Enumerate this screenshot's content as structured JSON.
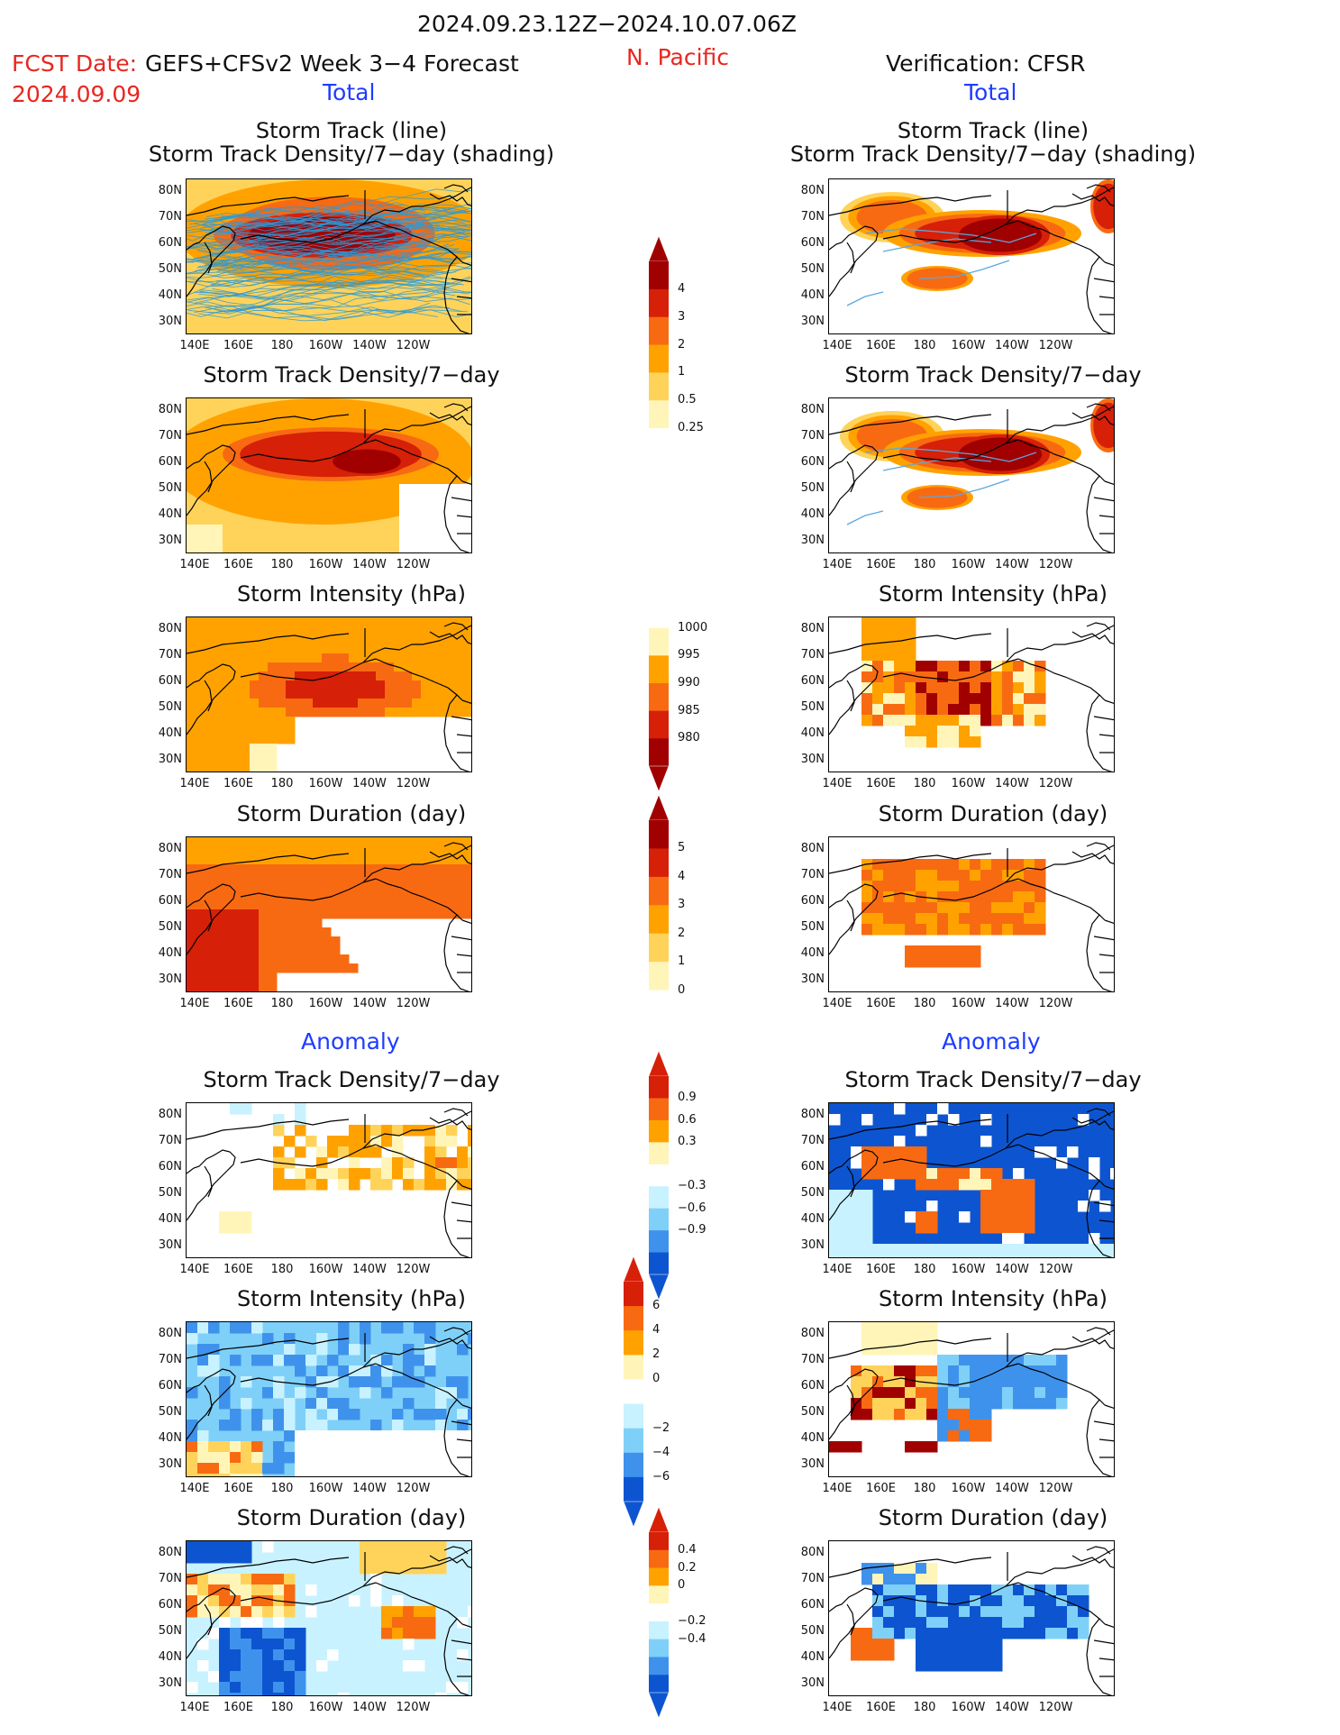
{
  "header": {
    "date_range": "2024.09.23.12Z−2024.10.07.06Z",
    "fcst_label": "FCST Date:",
    "fcst_model": "GEFS+CFSv2 Week 3−4 Forecast",
    "fcst_date": "2024.09.09",
    "region": "N. Pacific",
    "verification": "Verification: CFSR",
    "total_left": "Total",
    "total_right": "Total",
    "anomaly_left": "Anomaly",
    "anomaly_right": "Anomaly"
  },
  "panel_titles": {
    "track_line": "Storm Track (line)",
    "track_density_shading": "Storm Track Density/7−day (shading)",
    "track_density": "Storm Track Density/7−day",
    "intensity": "Storm Intensity (hPa)",
    "duration": "Storm Duration (day)"
  },
  "axes": {
    "lat_labels": [
      "80N",
      "70N",
      "60N",
      "50N",
      "40N",
      "30N"
    ],
    "lon_labels": [
      "140E",
      "160E",
      "180",
      "160W",
      "140W",
      "120W"
    ]
  },
  "colorbars": {
    "density_total": [
      "4",
      "3",
      "2",
      "1",
      "0.5",
      "0.25"
    ],
    "intensity_total": [
      "1000",
      "995",
      "990",
      "985",
      "980"
    ],
    "duration_total": [
      "5",
      "4",
      "3",
      "2",
      "1",
      "0"
    ],
    "density_anom": [
      "0.9",
      "0.6",
      "0.3",
      "−0.3",
      "−0.6",
      "−0.9"
    ],
    "intensity_anom": [
      "6",
      "4",
      "2",
      "0",
      "−2",
      "−4",
      "−6"
    ],
    "duration_anom": [
      "0.4",
      "0.2",
      "0",
      "−0.2",
      "−0.4"
    ]
  },
  "colors": {
    "warm": [
      "#fff5b8",
      "#ffd35a",
      "#ffa200",
      "#f86a12",
      "#d62008",
      "#a00000"
    ],
    "cool": [
      "#c8f2ff",
      "#7fd0f8",
      "#3f92ec",
      "#0d55d0"
    ],
    "track_forecast": "#2a9ad8",
    "track_obs": "#5ba8e0"
  }
}
